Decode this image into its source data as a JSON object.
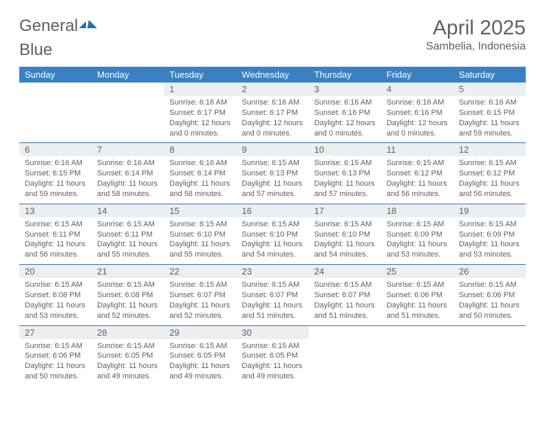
{
  "logo": {
    "text1": "General",
    "text2": "Blue"
  },
  "title": "April 2025",
  "location": "Sambelia, Indonesia",
  "colors": {
    "header_bg": "#3a81c4",
    "header_text": "#ffffff",
    "daynum_bg": "#eceff1",
    "text": "#5f5f5f",
    "rule": "#3a6fa0",
    "page_bg": "#ffffff",
    "logo_blue": "#1f6fb5"
  },
  "weekdays": [
    "Sunday",
    "Monday",
    "Tuesday",
    "Wednesday",
    "Thursday",
    "Friday",
    "Saturday"
  ],
  "weeks": [
    [
      null,
      null,
      {
        "n": "1",
        "sunrise": "Sunrise: 6:16 AM",
        "sunset": "Sunset: 6:17 PM",
        "day1": "Daylight: 12 hours",
        "day2": "and 0 minutes."
      },
      {
        "n": "2",
        "sunrise": "Sunrise: 6:16 AM",
        "sunset": "Sunset: 6:17 PM",
        "day1": "Daylight: 12 hours",
        "day2": "and 0 minutes."
      },
      {
        "n": "3",
        "sunrise": "Sunrise: 6:16 AM",
        "sunset": "Sunset: 6:16 PM",
        "day1": "Daylight: 12 hours",
        "day2": "and 0 minutes."
      },
      {
        "n": "4",
        "sunrise": "Sunrise: 6:16 AM",
        "sunset": "Sunset: 6:16 PM",
        "day1": "Daylight: 12 hours",
        "day2": "and 0 minutes."
      },
      {
        "n": "5",
        "sunrise": "Sunrise: 6:16 AM",
        "sunset": "Sunset: 6:15 PM",
        "day1": "Daylight: 11 hours",
        "day2": "and 59 minutes."
      }
    ],
    [
      {
        "n": "6",
        "sunrise": "Sunrise: 6:16 AM",
        "sunset": "Sunset: 6:15 PM",
        "day1": "Daylight: 11 hours",
        "day2": "and 59 minutes."
      },
      {
        "n": "7",
        "sunrise": "Sunrise: 6:16 AM",
        "sunset": "Sunset: 6:14 PM",
        "day1": "Daylight: 11 hours",
        "day2": "and 58 minutes."
      },
      {
        "n": "8",
        "sunrise": "Sunrise: 6:16 AM",
        "sunset": "Sunset: 6:14 PM",
        "day1": "Daylight: 11 hours",
        "day2": "and 58 minutes."
      },
      {
        "n": "9",
        "sunrise": "Sunrise: 6:15 AM",
        "sunset": "Sunset: 6:13 PM",
        "day1": "Daylight: 11 hours",
        "day2": "and 57 minutes."
      },
      {
        "n": "10",
        "sunrise": "Sunrise: 6:15 AM",
        "sunset": "Sunset: 6:13 PM",
        "day1": "Daylight: 11 hours",
        "day2": "and 57 minutes."
      },
      {
        "n": "11",
        "sunrise": "Sunrise: 6:15 AM",
        "sunset": "Sunset: 6:12 PM",
        "day1": "Daylight: 11 hours",
        "day2": "and 56 minutes."
      },
      {
        "n": "12",
        "sunrise": "Sunrise: 6:15 AM",
        "sunset": "Sunset: 6:12 PM",
        "day1": "Daylight: 11 hours",
        "day2": "and 56 minutes."
      }
    ],
    [
      {
        "n": "13",
        "sunrise": "Sunrise: 6:15 AM",
        "sunset": "Sunset: 6:11 PM",
        "day1": "Daylight: 11 hours",
        "day2": "and 56 minutes."
      },
      {
        "n": "14",
        "sunrise": "Sunrise: 6:15 AM",
        "sunset": "Sunset: 6:11 PM",
        "day1": "Daylight: 11 hours",
        "day2": "and 55 minutes."
      },
      {
        "n": "15",
        "sunrise": "Sunrise: 6:15 AM",
        "sunset": "Sunset: 6:10 PM",
        "day1": "Daylight: 11 hours",
        "day2": "and 55 minutes."
      },
      {
        "n": "16",
        "sunrise": "Sunrise: 6:15 AM",
        "sunset": "Sunset: 6:10 PM",
        "day1": "Daylight: 11 hours",
        "day2": "and 54 minutes."
      },
      {
        "n": "17",
        "sunrise": "Sunrise: 6:15 AM",
        "sunset": "Sunset: 6:10 PM",
        "day1": "Daylight: 11 hours",
        "day2": "and 54 minutes."
      },
      {
        "n": "18",
        "sunrise": "Sunrise: 6:15 AM",
        "sunset": "Sunset: 6:09 PM",
        "day1": "Daylight: 11 hours",
        "day2": "and 53 minutes."
      },
      {
        "n": "19",
        "sunrise": "Sunrise: 6:15 AM",
        "sunset": "Sunset: 6:09 PM",
        "day1": "Daylight: 11 hours",
        "day2": "and 53 minutes."
      }
    ],
    [
      {
        "n": "20",
        "sunrise": "Sunrise: 6:15 AM",
        "sunset": "Sunset: 6:08 PM",
        "day1": "Daylight: 11 hours",
        "day2": "and 53 minutes."
      },
      {
        "n": "21",
        "sunrise": "Sunrise: 6:15 AM",
        "sunset": "Sunset: 6:08 PM",
        "day1": "Daylight: 11 hours",
        "day2": "and 52 minutes."
      },
      {
        "n": "22",
        "sunrise": "Sunrise: 6:15 AM",
        "sunset": "Sunset: 6:07 PM",
        "day1": "Daylight: 11 hours",
        "day2": "and 52 minutes."
      },
      {
        "n": "23",
        "sunrise": "Sunrise: 6:15 AM",
        "sunset": "Sunset: 6:07 PM",
        "day1": "Daylight: 11 hours",
        "day2": "and 51 minutes."
      },
      {
        "n": "24",
        "sunrise": "Sunrise: 6:15 AM",
        "sunset": "Sunset: 6:07 PM",
        "day1": "Daylight: 11 hours",
        "day2": "and 51 minutes."
      },
      {
        "n": "25",
        "sunrise": "Sunrise: 6:15 AM",
        "sunset": "Sunset: 6:06 PM",
        "day1": "Daylight: 11 hours",
        "day2": "and 51 minutes."
      },
      {
        "n": "26",
        "sunrise": "Sunrise: 6:15 AM",
        "sunset": "Sunset: 6:06 PM",
        "day1": "Daylight: 11 hours",
        "day2": "and 50 minutes."
      }
    ],
    [
      {
        "n": "27",
        "sunrise": "Sunrise: 6:15 AM",
        "sunset": "Sunset: 6:06 PM",
        "day1": "Daylight: 11 hours",
        "day2": "and 50 minutes."
      },
      {
        "n": "28",
        "sunrise": "Sunrise: 6:15 AM",
        "sunset": "Sunset: 6:05 PM",
        "day1": "Daylight: 11 hours",
        "day2": "and 49 minutes."
      },
      {
        "n": "29",
        "sunrise": "Sunrise: 6:15 AM",
        "sunset": "Sunset: 6:05 PM",
        "day1": "Daylight: 11 hours",
        "day2": "and 49 minutes."
      },
      {
        "n": "30",
        "sunrise": "Sunrise: 6:15 AM",
        "sunset": "Sunset: 6:05 PM",
        "day1": "Daylight: 11 hours",
        "day2": "and 49 minutes."
      },
      null,
      null,
      null
    ]
  ]
}
